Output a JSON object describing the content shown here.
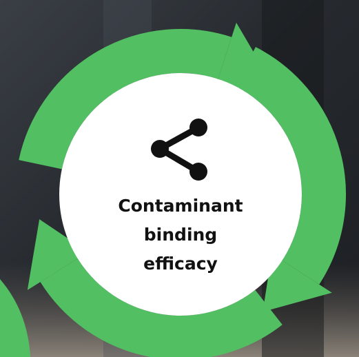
{
  "diagram": {
    "center_label_lines": [
      "Contaminant",
      "binding",
      "efficacy"
    ]
  }
}
